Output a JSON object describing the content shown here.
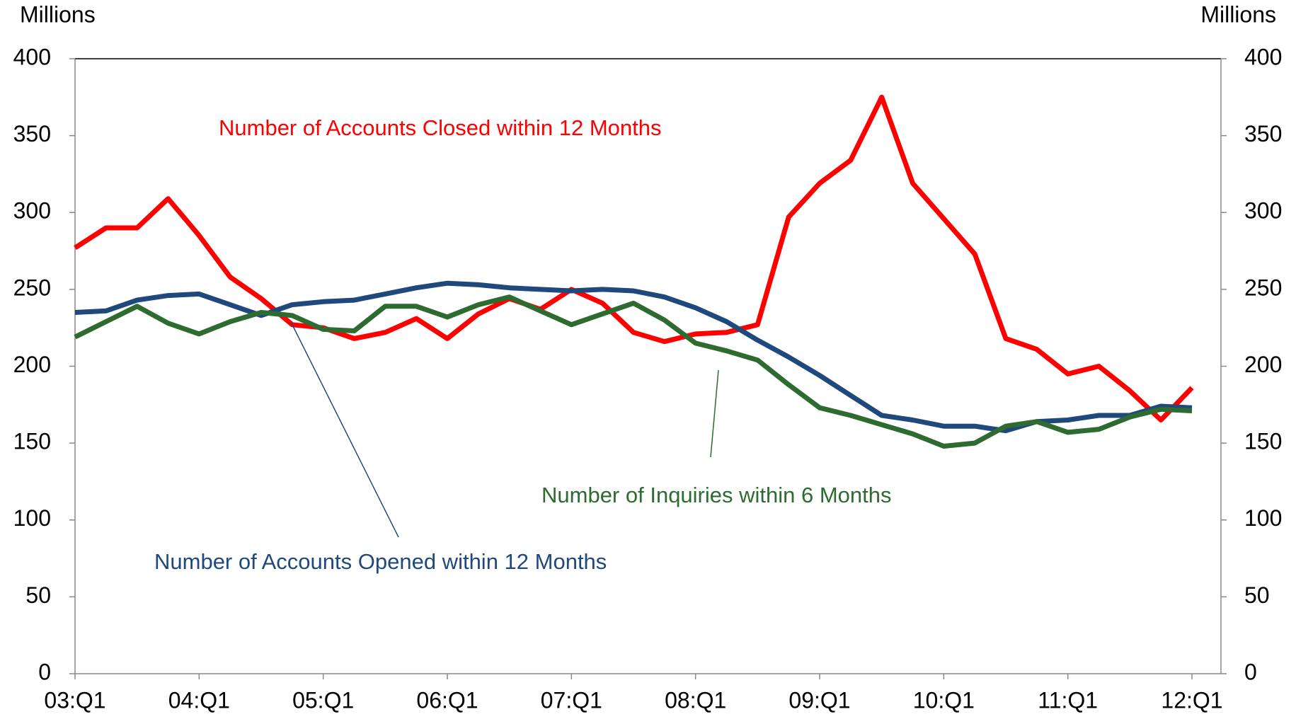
{
  "chart_data": {
    "type": "line",
    "y_label": "Millions",
    "y2_label": "Millions",
    "categories": [
      "03:Q1",
      null,
      null,
      null,
      "04:Q1",
      null,
      null,
      null,
      "05:Q1",
      null,
      null,
      null,
      "06:Q1",
      null,
      null,
      null,
      "07:Q1",
      null,
      null,
      null,
      "08:Q1",
      null,
      null,
      null,
      "09:Q1",
      null,
      null,
      null,
      "10:Q1",
      null,
      null,
      null,
      "11:Q1",
      null,
      null,
      null,
      "12:Q1"
    ],
    "series": [
      {
        "name": "Number of Accounts Closed within 12 Months",
        "color": "#ff0000",
        "values": [
          277,
          290,
          290,
          309,
          285,
          258,
          244,
          227,
          225,
          218,
          222,
          231,
          218,
          234,
          244,
          237,
          250,
          241,
          222,
          216,
          221,
          222,
          227,
          297,
          319,
          334,
          375,
          319,
          296,
          273,
          218,
          211,
          195,
          200,
          184,
          165,
          186
        ]
      },
      {
        "name": "Number of Accounts Opened within 12 Months",
        "color": "#1f497d",
        "values": [
          235,
          236,
          243,
          246,
          247,
          240,
          233,
          240,
          242,
          243,
          247,
          251,
          254,
          253,
          251,
          250,
          249,
          250,
          249,
          245,
          238,
          229,
          217,
          206,
          194,
          181,
          168,
          165,
          161,
          161,
          158,
          164,
          165,
          168,
          168,
          174,
          173
        ]
      },
      {
        "name": "Number of Inquiries within 6 Months",
        "color": "#2e6b30",
        "values": [
          219,
          229,
          239,
          228,
          221,
          229,
          235,
          233,
          224,
          223,
          239,
          239,
          232,
          240,
          245,
          236,
          227,
          234,
          241,
          230,
          215,
          210,
          204,
          188,
          173,
          168,
          162,
          156,
          148,
          150,
          161,
          164,
          157,
          159,
          167,
          172,
          171
        ]
      }
    ],
    "ylim": [
      0,
      400
    ],
    "yticks": [
      0,
      50,
      100,
      150,
      200,
      250,
      300,
      350,
      400
    ],
    "y2lim": [
      0,
      400
    ],
    "y2ticks": [
      0,
      50,
      100,
      150,
      200,
      250,
      300,
      350,
      400
    ]
  }
}
